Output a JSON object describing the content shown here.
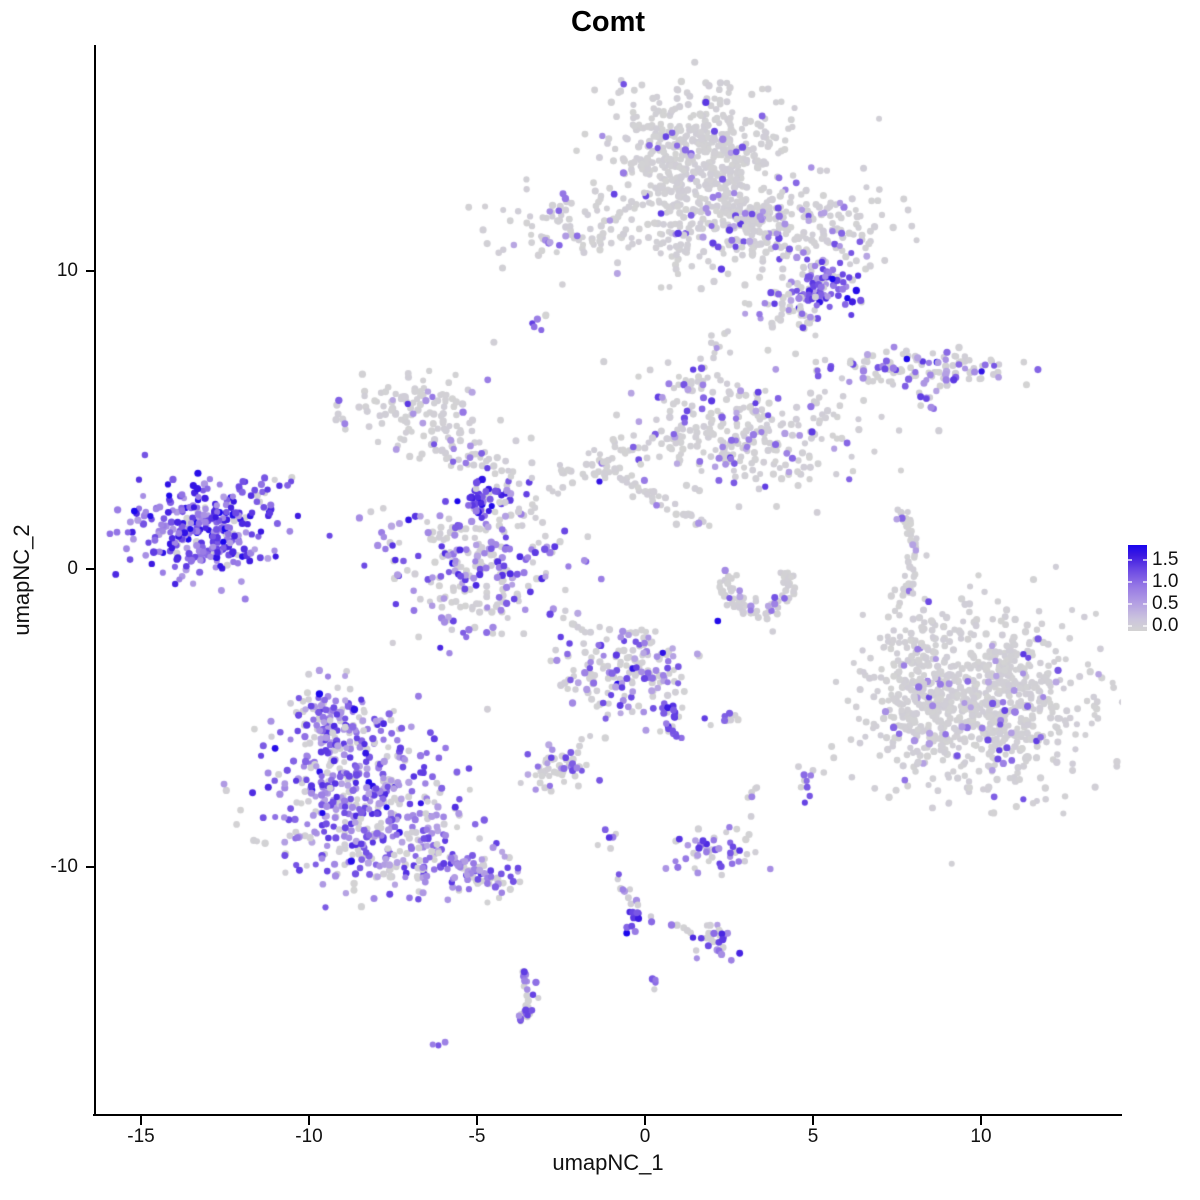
{
  "title": "Comt",
  "chart_data": {
    "type": "scatter",
    "subtype": "umap-feature-plot",
    "title": "Comt",
    "xlabel": "umapNC_1",
    "ylabel": "umapNC_2",
    "xlim": [
      -16.3,
      14.1
    ],
    "ylim": [
      -18.3,
      17.6
    ],
    "grid": false,
    "x_axis": {
      "tick_values": [
        -15,
        -10,
        -5,
        0,
        5,
        10
      ],
      "tick_labels": [
        "-15",
        "-10",
        "-5",
        "0",
        "5",
        "10"
      ]
    },
    "y_axis": {
      "tick_values": [
        10,
        0,
        -10
      ],
      "tick_labels": [
        "10",
        "0",
        "-10"
      ]
    },
    "legend": {
      "position": "right",
      "min": 0.0,
      "max": 1.5,
      "tick_labels": [
        "1.5",
        "1.0",
        "0.5",
        "0.0"
      ],
      "color_low": "#d3d3d3",
      "color_high": "#1905ee"
    },
    "point_color_scale": [
      "#d3d3d3",
      "#b4a0e3",
      "#9678e5",
      "#6946e4",
      "#1905ee"
    ],
    "clusters": [
      {
        "name": "top-center-blob",
        "kind": "gauss",
        "c": [
          1.61,
          13.99
        ],
        "s": [
          1.25,
          1.05
        ],
        "n": 480,
        "expr_frac": 0.055
      },
      {
        "name": "top-center-arm",
        "kind": "gauss",
        "c": [
          2.56,
          11.61
        ],
        "s": [
          1.0,
          0.7
        ],
        "n": 160,
        "expr_frac": 0.13
      },
      {
        "name": "top-left-column",
        "kind": "gauss",
        "c": [
          0.89,
          11.31
        ],
        "s": [
          0.45,
          0.8
        ],
        "n": 55,
        "expr_frac": 0.08
      },
      {
        "name": "top-right-lobe",
        "kind": "gauss",
        "c": [
          4.61,
          11.41
        ],
        "s": [
          1.3,
          0.8
        ],
        "n": 185,
        "expr_frac": 0.18
      },
      {
        "name": "top-right-purple-patch",
        "kind": "gauss",
        "c": [
          5.39,
          9.46
        ],
        "s": [
          0.5,
          0.38
        ],
        "n": 80,
        "expr_frac": 0.82,
        "lo": 0.35,
        "hi": 0.9,
        "dark": 0.05
      },
      {
        "name": "below-purple-patch",
        "kind": "gauss",
        "c": [
          4.38,
          8.89
        ],
        "s": [
          0.6,
          0.48
        ],
        "n": 50,
        "expr_frac": 0.3
      },
      {
        "name": "upper-left-small-cluster",
        "kind": "gauss",
        "c": [
          -2.2,
          11.51
        ],
        "s": [
          1.2,
          0.55
        ],
        "n": 105,
        "expr_frac": 0.1
      },
      {
        "name": "upper-left-tiny-trio",
        "kind": "gauss",
        "c": [
          -3.13,
          8.39
        ],
        "s": [
          0.16,
          0.16
        ],
        "n": 6,
        "expr_frac": 0.6,
        "lo": 0.4,
        "hi": 0.8
      },
      {
        "name": "right-elongated-cluster",
        "kind": "gauss",
        "c": [
          8.04,
          6.71
        ],
        "s": [
          1.65,
          0.3
        ],
        "n": 125,
        "expr_frac": 0.32,
        "dark": 0.04
      },
      {
        "name": "right-elongated-tail",
        "kind": "gauss",
        "c": [
          8.36,
          5.8
        ],
        "s": [
          0.22,
          0.28
        ],
        "n": 9,
        "expr_frac": 0.3
      },
      {
        "name": "mid-left-cluster",
        "kind": "gauss",
        "c": [
          -6.85,
          5.3
        ],
        "s": [
          1.1,
          0.65
        ],
        "n": 115,
        "expr_frac": 0.16
      },
      {
        "name": "mid-left-arm",
        "kind": "line",
        "p1": [
          -6.1,
          4.35
        ],
        "p2": [
          -4.1,
          3.0
        ],
        "s": [
          0.4,
          0.35
        ],
        "n": 55,
        "expr_frac": 0.25
      },
      {
        "name": "purple-knot",
        "kind": "gauss",
        "c": [
          -4.79,
          2.15
        ],
        "s": [
          0.32,
          0.33
        ],
        "n": 45,
        "expr_frac": 0.85,
        "lo": 0.5,
        "hi": 1.0
      },
      {
        "name": "mid-mixed-cluster",
        "kind": "gauss",
        "c": [
          -4.94,
          -0.03
        ],
        "s": [
          1.35,
          1.2
        ],
        "n": 265,
        "expr_frac": 0.48,
        "lo": 0.3,
        "hi": 0.85,
        "dark": 0.015
      },
      {
        "name": "bridge-stream-up",
        "kind": "line",
        "p1": [
          -3.35,
          2.6
        ],
        "p2": [
          0.35,
          4.4
        ],
        "s": [
          0.35,
          0.3
        ],
        "n": 60,
        "expr_frac": 0.13
      },
      {
        "name": "diagonal-streak-down",
        "kind": "line",
        "p1": [
          -1.55,
          3.7
        ],
        "p2": [
          1.7,
          1.5
        ],
        "s": [
          0.13,
          0.13
        ],
        "n": 38,
        "expr_frac": 0.08
      },
      {
        "name": "center-right-cluster",
        "kind": "gauss",
        "c": [
          2.83,
          4.5
        ],
        "s": [
          1.75,
          1.0
        ],
        "n": 285,
        "expr_frac": 0.21
      },
      {
        "name": "center-up-arm",
        "kind": "line",
        "p1": [
          1.35,
          5.9
        ],
        "p2": [
          2.35,
          7.75
        ],
        "s": [
          0.3,
          0.3
        ],
        "n": 32,
        "expr_frac": 0.2
      },
      {
        "name": "ring-cluster",
        "kind": "arc",
        "c": [
          3.35,
          -0.55
        ],
        "rx": 1.0,
        "ry": 0.8,
        "a0": -200,
        "a1": 30,
        "s": [
          0.16,
          0.16
        ],
        "n": 80,
        "expr_frac": 0.08
      },
      {
        "name": "right-sliver-crescent",
        "kind": "arc",
        "c": [
          7.5,
          0.55
        ],
        "rx": 0.5,
        "ry": 1.35,
        "a0": -80,
        "a1": 85,
        "s": [
          0.11,
          0.11
        ],
        "n": 45,
        "expr_frac": 0.12
      },
      {
        "name": "big-right-cluster",
        "kind": "gauss",
        "c": [
          10.15,
          -4.4
        ],
        "s": [
          1.7,
          1.5
        ],
        "n": 830,
        "expr_frac": 0.07
      },
      {
        "name": "big-right-west-wing",
        "kind": "gauss",
        "c": [
          7.95,
          -3.9
        ],
        "s": [
          0.5,
          1.45
        ],
        "n": 105,
        "expr_frac": 0.08
      },
      {
        "name": "far-left-cluster",
        "kind": "gauss",
        "c": [
          -13.06,
          1.21
        ],
        "s": [
          1.1,
          0.78
        ],
        "n": 300,
        "expr_frac": 0.85,
        "lo": 0.35,
        "hi": 0.95,
        "dark": 0.06
      },
      {
        "name": "far-left-tail",
        "kind": "line",
        "p1": [
          -11.7,
          2.2
        ],
        "p2": [
          -10.8,
          3.05
        ],
        "s": [
          0.22,
          0.22
        ],
        "n": 18,
        "expr_frac": 0.8,
        "lo": 0.35,
        "hi": 0.9
      },
      {
        "name": "bottom-left-apex",
        "kind": "gauss",
        "c": [
          -9.35,
          -5.2
        ],
        "s": [
          0.75,
          0.65
        ],
        "n": 140,
        "expr_frac": 0.68,
        "lo": 0.3,
        "hi": 0.85,
        "dark": 0.02
      },
      {
        "name": "bottom-left-body",
        "kind": "gauss",
        "c": [
          -8.6,
          -7.6
        ],
        "s": [
          1.45,
          1.15
        ],
        "n": 340,
        "expr_frac": 0.7,
        "lo": 0.3,
        "hi": 0.85,
        "dark": 0.02
      },
      {
        "name": "bottom-left-lower",
        "kind": "gauss",
        "c": [
          -7.3,
          -9.4
        ],
        "s": [
          1.35,
          0.75
        ],
        "n": 150,
        "expr_frac": 0.66,
        "lo": 0.3,
        "hi": 0.85,
        "dark": 0.02
      },
      {
        "name": "bottom-left-tail",
        "kind": "line",
        "p1": [
          -6.2,
          -9.8
        ],
        "p2": [
          -3.9,
          -10.5
        ],
        "s": [
          0.38,
          0.3
        ],
        "n": 85,
        "expr_frac": 0.55
      },
      {
        "name": "teardrop-cluster",
        "kind": "gauss",
        "c": [
          -0.62,
          -3.4
        ],
        "s": [
          1.0,
          0.85
        ],
        "n": 185,
        "expr_frac": 0.38,
        "dark": 0.02
      },
      {
        "name": "teardrop-tip",
        "kind": "line",
        "p1": [
          0.5,
          -4.5
        ],
        "p2": [
          0.95,
          -5.7
        ],
        "s": [
          0.16,
          0.16
        ],
        "n": 20,
        "expr_frac": 0.75,
        "lo": 0.5,
        "hi": 0.95
      },
      {
        "name": "small-pair-right",
        "kind": "gauss",
        "c": [
          2.5,
          -5.0
        ],
        "s": [
          0.28,
          0.14
        ],
        "n": 11,
        "expr_frac": 0.5
      },
      {
        "name": "small-left-cluster",
        "kind": "gauss",
        "c": [
          -2.62,
          -6.7
        ],
        "s": [
          0.55,
          0.42
        ],
        "n": 52,
        "expr_frac": 0.22
      },
      {
        "name": "purple-pair",
        "kind": "gauss",
        "c": [
          4.78,
          -7.3
        ],
        "s": [
          0.16,
          0.28
        ],
        "n": 8,
        "expr_frac": 0.8,
        "lo": 0.45,
        "hi": 0.9
      },
      {
        "name": "tiny-gray-clump",
        "kind": "gauss",
        "c": [
          3.1,
          -7.55
        ],
        "s": [
          0.14,
          0.14
        ],
        "n": 5,
        "expr_frac": 0.25
      },
      {
        "name": "chain-top",
        "kind": "gauss",
        "c": [
          -1.12,
          -9.2
        ],
        "s": [
          0.18,
          0.22
        ],
        "n": 6,
        "expr_frac": 0.6,
        "lo": 0.4,
        "hi": 0.85
      },
      {
        "name": "chain-mid",
        "kind": "line",
        "p1": [
          -0.8,
          -10.2
        ],
        "p2": [
          -0.35,
          -11.3
        ],
        "s": [
          0.1,
          0.1
        ],
        "n": 9,
        "expr_frac": 0.5
      },
      {
        "name": "chain-junction",
        "kind": "gauss",
        "c": [
          -0.32,
          -11.68
        ],
        "s": [
          0.2,
          0.28
        ],
        "n": 13,
        "expr_frac": 0.8,
        "lo": 0.5,
        "hi": 1.0
      },
      {
        "name": "chain-right-arm",
        "kind": "line",
        "p1": [
          0.15,
          -11.75
        ],
        "p2": [
          2.3,
          -12.4
        ],
        "s": [
          0.13,
          0.13
        ],
        "n": 11,
        "expr_frac": 0.4
      },
      {
        "name": "bottom-mid-blob",
        "kind": "gauss",
        "c": [
          2.17,
          -9.43
        ],
        "s": [
          0.65,
          0.4
        ],
        "n": 52,
        "expr_frac": 0.5,
        "lo": 0.35,
        "hi": 0.85
      },
      {
        "name": "bottom-small-blob",
        "kind": "gauss",
        "c": [
          2.1,
          -12.5
        ],
        "s": [
          0.26,
          0.3
        ],
        "n": 23,
        "expr_frac": 0.55,
        "lo": 0.4,
        "hi": 0.9
      },
      {
        "name": "lone-purple-streak",
        "kind": "gauss",
        "c": [
          0.3,
          -13.8
        ],
        "s": [
          0.07,
          0.16
        ],
        "n": 4,
        "expr_frac": 0.9,
        "lo": 0.5,
        "hi": 0.8
      },
      {
        "name": "small-crescent",
        "kind": "arc",
        "c": [
          -3.7,
          -14.35
        ],
        "rx": 0.3,
        "ry": 0.8,
        "a0": -95,
        "a1": 95,
        "s": [
          0.1,
          0.1
        ],
        "n": 30,
        "expr_frac": 0.55,
        "lo": 0.35,
        "hi": 0.8
      },
      {
        "name": "tiny-pair-bottom-left",
        "kind": "gauss",
        "c": [
          -6.15,
          -15.95
        ],
        "s": [
          0.1,
          0.07
        ],
        "n": 3,
        "expr_frac": 0.85,
        "lo": 0.4,
        "hi": 0.7
      },
      {
        "name": "single-dot-a",
        "kind": "gauss",
        "c": [
          7.55,
          4.65
        ],
        "s": [
          0.02,
          0.02
        ],
        "n": 1,
        "expr_frac": 0
      },
      {
        "name": "single-dot-b",
        "kind": "gauss",
        "c": [
          3.8,
          -2.1
        ],
        "s": [
          0.02,
          0.02
        ],
        "n": 1,
        "expr_frac": 0
      },
      {
        "name": "single-dot-c",
        "kind": "gauss",
        "c": [
          -2.45,
          9.55
        ],
        "s": [
          0.02,
          0.02
        ],
        "n": 1,
        "expr_frac": 0
      }
    ]
  }
}
